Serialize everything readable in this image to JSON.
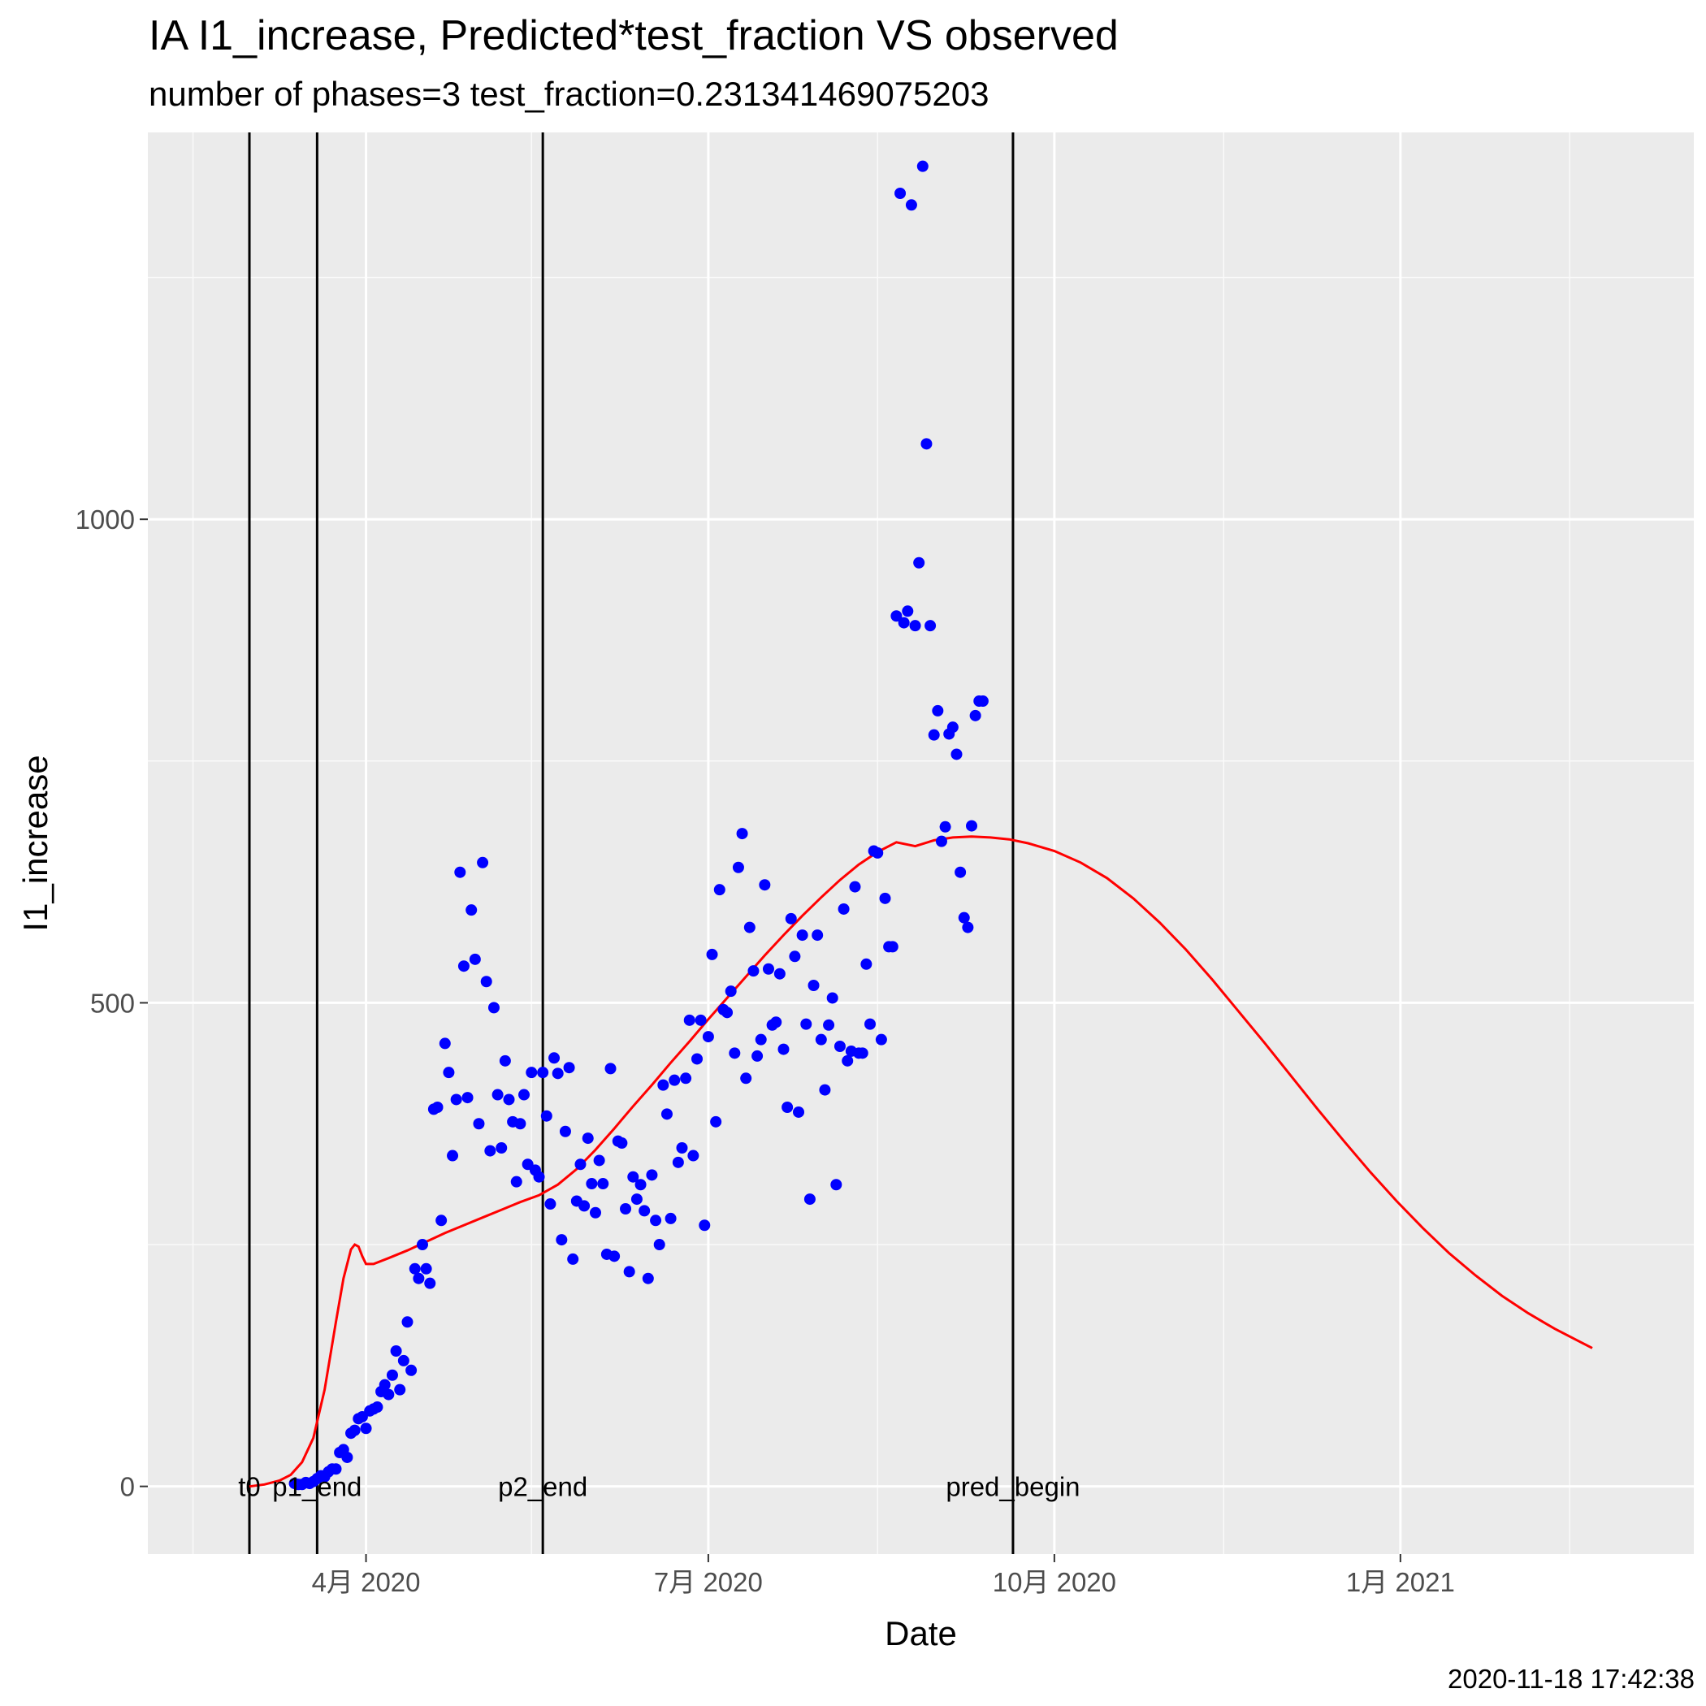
{
  "chart_data": {
    "type": "scatter",
    "title": "IA I1_increase, Predicted*test_fraction VS observed",
    "subtitle": "number of phases=3   test_fraction=0.231341469075203",
    "xlabel": "Date",
    "ylabel": "I1_increase",
    "timestamp": "2020-11-18 17:42:38",
    "x_axis": {
      "scale": "date",
      "range": [
        "2020-02-03",
        "2021-03-20"
      ],
      "ticks": [
        {
          "date": "2020-04-01",
          "label": "4月 2020"
        },
        {
          "date": "2020-07-01",
          "label": "7月 2020"
        },
        {
          "date": "2020-10-01",
          "label": "10月 2020"
        },
        {
          "date": "2021-01-01",
          "label": "1月 2021"
        }
      ],
      "minor_ticks": [
        "2020-02-15",
        "2020-05-15",
        "2020-08-15",
        "2020-11-15",
        "2021-02-15"
      ]
    },
    "y_axis": {
      "range": [
        -70,
        1400
      ],
      "ticks": [
        0,
        500,
        1000
      ],
      "minor_ticks": [
        250,
        750,
        1250
      ]
    },
    "grid": true,
    "background": "#ebebeb",
    "vertical_lines": [
      {
        "date": "2020-03-01",
        "label": "t0"
      },
      {
        "date": "2020-03-19",
        "label": "p1_end"
      },
      {
        "date": "2020-05-18",
        "label": "p2_end"
      },
      {
        "date": "2020-09-20",
        "label": "pred_begin"
      }
    ],
    "series": [
      {
        "kind": "points",
        "color": "#0000ff",
        "points": [
          [
            "2020-03-13",
            3
          ],
          [
            "2020-03-14",
            2
          ],
          [
            "2020-03-15",
            2
          ],
          [
            "2020-03-16",
            4
          ],
          [
            "2020-03-17",
            3
          ],
          [
            "2020-03-18",
            5
          ],
          [
            "2020-03-19",
            8
          ],
          [
            "2020-03-20",
            11
          ],
          [
            "2020-03-21",
            10
          ],
          [
            "2020-03-22",
            15
          ],
          [
            "2020-03-23",
            18
          ],
          [
            "2020-03-24",
            18
          ],
          [
            "2020-03-25",
            35
          ],
          [
            "2020-03-26",
            38
          ],
          [
            "2020-03-27",
            30
          ],
          [
            "2020-03-28",
            55
          ],
          [
            "2020-03-29",
            58
          ],
          [
            "2020-03-30",
            70
          ],
          [
            "2020-03-31",
            72
          ],
          [
            "2020-04-01",
            60
          ],
          [
            "2020-04-02",
            78
          ],
          [
            "2020-04-03",
            80
          ],
          [
            "2020-04-04",
            82
          ],
          [
            "2020-04-05",
            98
          ],
          [
            "2020-04-06",
            105
          ],
          [
            "2020-04-07",
            95
          ],
          [
            "2020-04-08",
            115
          ],
          [
            "2020-04-09",
            140
          ],
          [
            "2020-04-10",
            100
          ],
          [
            "2020-04-11",
            130
          ],
          [
            "2020-04-12",
            170
          ],
          [
            "2020-04-13",
            120
          ],
          [
            "2020-04-14",
            225
          ],
          [
            "2020-04-15",
            215
          ],
          [
            "2020-04-16",
            250
          ],
          [
            "2020-04-17",
            225
          ],
          [
            "2020-04-18",
            210
          ],
          [
            "2020-04-19",
            390
          ],
          [
            "2020-04-20",
            392
          ],
          [
            "2020-04-21",
            275
          ],
          [
            "2020-04-22",
            458
          ],
          [
            "2020-04-23",
            428
          ],
          [
            "2020-04-24",
            342
          ],
          [
            "2020-04-25",
            400
          ],
          [
            "2020-04-26",
            635
          ],
          [
            "2020-04-27",
            538
          ],
          [
            "2020-04-28",
            402
          ],
          [
            "2020-04-29",
            596
          ],
          [
            "2020-04-30",
            545
          ],
          [
            "2020-05-01",
            375
          ],
          [
            "2020-05-02",
            645
          ],
          [
            "2020-05-03",
            522
          ],
          [
            "2020-05-04",
            347
          ],
          [
            "2020-05-05",
            495
          ],
          [
            "2020-05-06",
            405
          ],
          [
            "2020-05-07",
            350
          ],
          [
            "2020-05-08",
            440
          ],
          [
            "2020-05-09",
            400
          ],
          [
            "2020-05-10",
            377
          ],
          [
            "2020-05-11",
            315
          ],
          [
            "2020-05-12",
            375
          ],
          [
            "2020-05-13",
            405
          ],
          [
            "2020-05-14",
            333
          ],
          [
            "2020-05-15",
            428
          ],
          [
            "2020-05-16",
            327
          ],
          [
            "2020-05-17",
            320
          ],
          [
            "2020-05-18",
            428
          ],
          [
            "2020-05-19",
            383
          ],
          [
            "2020-05-20",
            292
          ],
          [
            "2020-05-21",
            443
          ],
          [
            "2020-05-22",
            427
          ],
          [
            "2020-05-23",
            255
          ],
          [
            "2020-05-24",
            367
          ],
          [
            "2020-05-25",
            433
          ],
          [
            "2020-05-26",
            235
          ],
          [
            "2020-05-27",
            295
          ],
          [
            "2020-05-28",
            333
          ],
          [
            "2020-05-29",
            290
          ],
          [
            "2020-05-30",
            360
          ],
          [
            "2020-05-31",
            313
          ],
          [
            "2020-06-01",
            283
          ],
          [
            "2020-06-02",
            337
          ],
          [
            "2020-06-03",
            313
          ],
          [
            "2020-06-04",
            240
          ],
          [
            "2020-06-05",
            432
          ],
          [
            "2020-06-06",
            238
          ],
          [
            "2020-06-07",
            357
          ],
          [
            "2020-06-08",
            355
          ],
          [
            "2020-06-09",
            287
          ],
          [
            "2020-06-10",
            222
          ],
          [
            "2020-06-11",
            320
          ],
          [
            "2020-06-12",
            297
          ],
          [
            "2020-06-13",
            312
          ],
          [
            "2020-06-14",
            285
          ],
          [
            "2020-06-15",
            215
          ],
          [
            "2020-06-16",
            322
          ],
          [
            "2020-06-17",
            275
          ],
          [
            "2020-06-18",
            250
          ],
          [
            "2020-06-19",
            415
          ],
          [
            "2020-06-20",
            385
          ],
          [
            "2020-06-21",
            277
          ],
          [
            "2020-06-22",
            420
          ],
          [
            "2020-06-23",
            335
          ],
          [
            "2020-06-24",
            350
          ],
          [
            "2020-06-25",
            422
          ],
          [
            "2020-06-26",
            482
          ],
          [
            "2020-06-27",
            342
          ],
          [
            "2020-06-28",
            442
          ],
          [
            "2020-06-29",
            482
          ],
          [
            "2020-06-30",
            270
          ],
          [
            "2020-07-01",
            465
          ],
          [
            "2020-07-02",
            550
          ],
          [
            "2020-07-03",
            377
          ],
          [
            "2020-07-04",
            617
          ],
          [
            "2020-07-05",
            493
          ],
          [
            "2020-07-06",
            490
          ],
          [
            "2020-07-07",
            512
          ],
          [
            "2020-07-08",
            448
          ],
          [
            "2020-07-09",
            640
          ],
          [
            "2020-07-10",
            675
          ],
          [
            "2020-07-11",
            422
          ],
          [
            "2020-07-12",
            578
          ],
          [
            "2020-07-13",
            533
          ],
          [
            "2020-07-14",
            445
          ],
          [
            "2020-07-15",
            462
          ],
          [
            "2020-07-16",
            622
          ],
          [
            "2020-07-17",
            535
          ],
          [
            "2020-07-18",
            477
          ],
          [
            "2020-07-19",
            480
          ],
          [
            "2020-07-20",
            530
          ],
          [
            "2020-07-21",
            452
          ],
          [
            "2020-07-22",
            392
          ],
          [
            "2020-07-23",
            587
          ],
          [
            "2020-07-24",
            548
          ],
          [
            "2020-07-25",
            387
          ],
          [
            "2020-07-26",
            570
          ],
          [
            "2020-07-27",
            478
          ],
          [
            "2020-07-28",
            297
          ],
          [
            "2020-07-29",
            518
          ],
          [
            "2020-07-30",
            570
          ],
          [
            "2020-07-31",
            462
          ],
          [
            "2020-08-01",
            410
          ],
          [
            "2020-08-02",
            477
          ],
          [
            "2020-08-03",
            505
          ],
          [
            "2020-08-04",
            312
          ],
          [
            "2020-08-05",
            455
          ],
          [
            "2020-08-06",
            597
          ],
          [
            "2020-08-07",
            440
          ],
          [
            "2020-08-08",
            450
          ],
          [
            "2020-08-09",
            620
          ],
          [
            "2020-08-10",
            448
          ],
          [
            "2020-08-11",
            448
          ],
          [
            "2020-08-12",
            540
          ],
          [
            "2020-08-13",
            478
          ],
          [
            "2020-08-14",
            657
          ],
          [
            "2020-08-15",
            655
          ],
          [
            "2020-08-16",
            462
          ],
          [
            "2020-08-17",
            608
          ],
          [
            "2020-08-18",
            558
          ],
          [
            "2020-08-19",
            558
          ],
          [
            "2020-08-20",
            900
          ],
          [
            "2020-08-21",
            1337
          ],
          [
            "2020-08-22",
            893
          ],
          [
            "2020-08-23",
            905
          ],
          [
            "2020-08-24",
            1325
          ],
          [
            "2020-08-25",
            890
          ],
          [
            "2020-08-26",
            955
          ],
          [
            "2020-08-27",
            1365
          ],
          [
            "2020-08-28",
            1078
          ],
          [
            "2020-08-29",
            890
          ],
          [
            "2020-08-30",
            777
          ],
          [
            "2020-08-31",
            802
          ],
          [
            "2020-09-01",
            667
          ],
          [
            "2020-09-02",
            682
          ],
          [
            "2020-09-03",
            778
          ],
          [
            "2020-09-04",
            785
          ],
          [
            "2020-09-05",
            757
          ],
          [
            "2020-09-06",
            635
          ],
          [
            "2020-09-07",
            588
          ],
          [
            "2020-09-08",
            578
          ],
          [
            "2020-09-09",
            683
          ],
          [
            "2020-09-10",
            797
          ],
          [
            "2020-09-11",
            812
          ],
          [
            "2020-09-12",
            812
          ]
        ]
      },
      {
        "kind": "line",
        "color": "#ff0000",
        "points": [
          [
            "2020-03-01",
            0
          ],
          [
            "2020-03-05",
            2
          ],
          [
            "2020-03-09",
            6
          ],
          [
            "2020-03-12",
            12
          ],
          [
            "2020-03-15",
            25
          ],
          [
            "2020-03-18",
            50
          ],
          [
            "2020-03-21",
            100
          ],
          [
            "2020-03-24",
            170
          ],
          [
            "2020-03-26",
            215
          ],
          [
            "2020-03-28",
            245
          ],
          [
            "2020-03-29",
            250
          ],
          [
            "2020-03-30",
            248
          ],
          [
            "2020-03-31",
            238
          ],
          [
            "2020-04-01",
            230
          ],
          [
            "2020-04-03",
            230
          ],
          [
            "2020-04-07",
            236
          ],
          [
            "2020-04-12",
            244
          ],
          [
            "2020-04-17",
            253
          ],
          [
            "2020-04-22",
            262
          ],
          [
            "2020-04-27",
            270
          ],
          [
            "2020-05-02",
            278
          ],
          [
            "2020-05-07",
            286
          ],
          [
            "2020-05-12",
            294
          ],
          [
            "2020-05-17",
            301
          ],
          [
            "2020-05-22",
            312
          ],
          [
            "2020-05-27",
            328
          ],
          [
            "2020-06-01",
            348
          ],
          [
            "2020-06-06",
            370
          ],
          [
            "2020-06-11",
            393
          ],
          [
            "2020-06-16",
            415
          ],
          [
            "2020-06-21",
            438
          ],
          [
            "2020-06-26",
            460
          ],
          [
            "2020-07-01",
            483
          ],
          [
            "2020-07-06",
            505
          ],
          [
            "2020-07-11",
            527
          ],
          [
            "2020-07-16",
            549
          ],
          [
            "2020-07-21",
            570
          ],
          [
            "2020-07-26",
            590
          ],
          [
            "2020-07-31",
            609
          ],
          [
            "2020-08-05",
            627
          ],
          [
            "2020-08-10",
            643
          ],
          [
            "2020-08-15",
            656
          ],
          [
            "2020-08-20",
            666
          ],
          [
            "2020-08-25",
            662
          ],
          [
            "2020-08-30",
            668
          ],
          [
            "2020-09-04",
            671
          ],
          [
            "2020-09-09",
            672
          ],
          [
            "2020-09-14",
            671
          ],
          [
            "2020-09-19",
            669
          ],
          [
            "2020-09-24",
            665
          ],
          [
            "2020-10-01",
            657
          ],
          [
            "2020-10-08",
            645
          ],
          [
            "2020-10-15",
            629
          ],
          [
            "2020-10-22",
            608
          ],
          [
            "2020-10-29",
            583
          ],
          [
            "2020-11-05",
            555
          ],
          [
            "2020-11-12",
            524
          ],
          [
            "2020-11-19",
            491
          ],
          [
            "2020-11-26",
            458
          ],
          [
            "2020-12-03",
            424
          ],
          [
            "2020-12-10",
            390
          ],
          [
            "2020-12-17",
            357
          ],
          [
            "2020-12-24",
            325
          ],
          [
            "2020-12-31",
            295
          ],
          [
            "2021-01-07",
            267
          ],
          [
            "2021-01-14",
            241
          ],
          [
            "2021-01-21",
            218
          ],
          [
            "2021-01-28",
            197
          ],
          [
            "2021-02-04",
            179
          ],
          [
            "2021-02-11",
            163
          ],
          [
            "2021-02-18",
            149
          ],
          [
            "2021-02-21",
            143
          ]
        ]
      }
    ]
  }
}
